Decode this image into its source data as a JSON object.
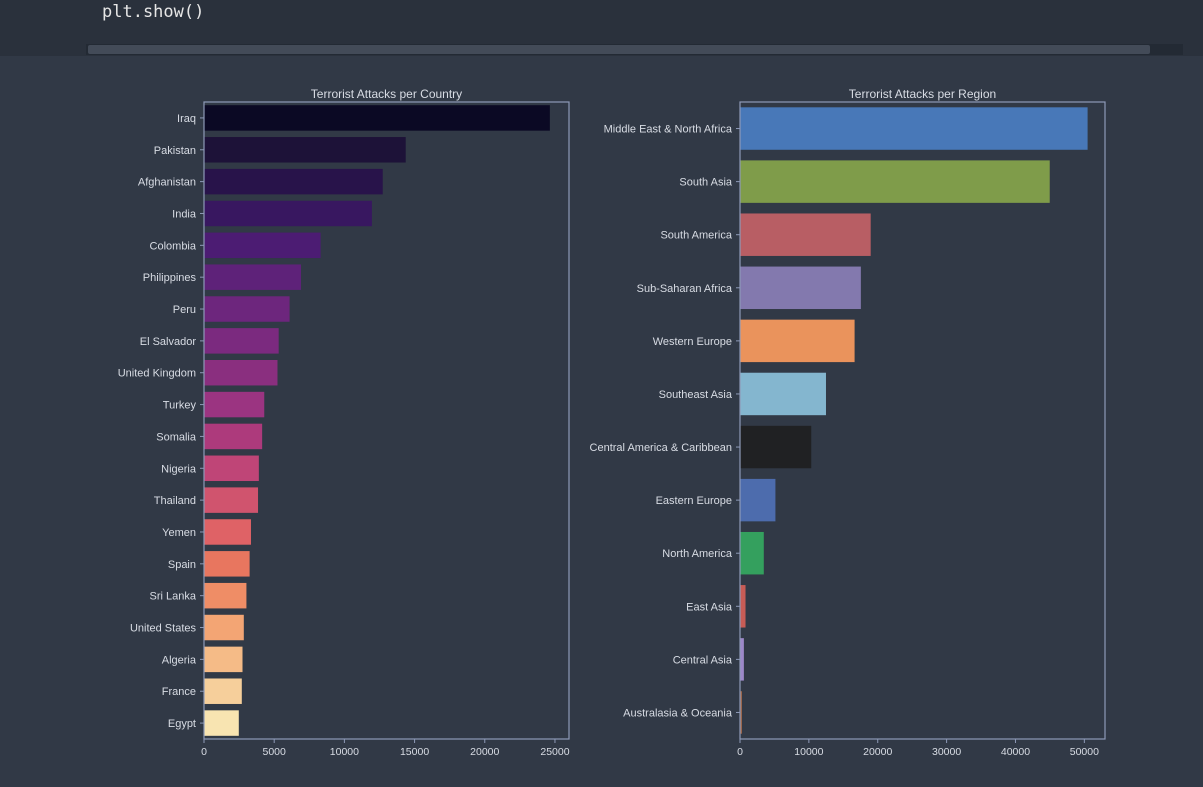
{
  "code": {
    "line": "plt.show()"
  },
  "colors": {
    "background": "#313946",
    "text": "#d8dce4",
    "axes": "#8e9ab8"
  },
  "chart_data": [
    {
      "type": "bar",
      "orientation": "horizontal",
      "title": "Terrorist Attacks per Country",
      "categories": [
        "Iraq",
        "Pakistan",
        "Afghanistan",
        "India",
        "Colombia",
        "Philippines",
        "Peru",
        "El Salvador",
        "United Kingdom",
        "Turkey",
        "Somalia",
        "Nigeria",
        "Thailand",
        "Yemen",
        "Spain",
        "Sri Lanka",
        "United States",
        "Algeria",
        "France",
        "Egypt"
      ],
      "values": [
        24636,
        14368,
        12731,
        11960,
        8306,
        6908,
        6096,
        5320,
        5235,
        4292,
        4142,
        3907,
        3849,
        3347,
        3249,
        3022,
        2836,
        2743,
        2693,
        2479
      ],
      "colors": [
        "#0b0924",
        "#1d1238",
        "#28134a",
        "#381760",
        "#4c1c73",
        "#5e2279",
        "#6d267d",
        "#7b2a7f",
        "#8a2f7f",
        "#9b3481",
        "#ad3a7c",
        "#bf4577",
        "#d0546e",
        "#df6266",
        "#e8765f",
        "#ef8d66",
        "#f3a574",
        "#f5bb87",
        "#f6cf9b",
        "#f8e4b1"
      ],
      "xticks": [
        0,
        5000,
        10000,
        15000,
        20000,
        25000
      ],
      "xlim": [
        0,
        26000
      ]
    },
    {
      "type": "bar",
      "orientation": "horizontal",
      "title": "Terrorist Attacks per Region",
      "categories": [
        "Middle East & North Africa",
        "South Asia",
        "South America",
        "Sub-Saharan Africa",
        "Western Europe",
        "Southeast Asia",
        "Central America & Caribbean",
        "Eastern Europe",
        "North America",
        "East Asia",
        "Central Asia",
        "Australasia & Oceania"
      ],
      "values": [
        50474,
        44974,
        18978,
        17550,
        16639,
        12485,
        10344,
        5144,
        3456,
        802,
        563,
        282
      ],
      "colors": [
        "#4878b8",
        "#7f9c4a",
        "#b85e64",
        "#8379ae",
        "#ea935c",
        "#84b6cf",
        "#202123",
        "#4d6cad",
        "#34a05e",
        "#c75c56",
        "#9c88c8",
        "#a1694d"
      ],
      "xticks": [
        0,
        10000,
        20000,
        30000,
        40000,
        50000
      ],
      "xlim": [
        0,
        53000
      ]
    }
  ]
}
